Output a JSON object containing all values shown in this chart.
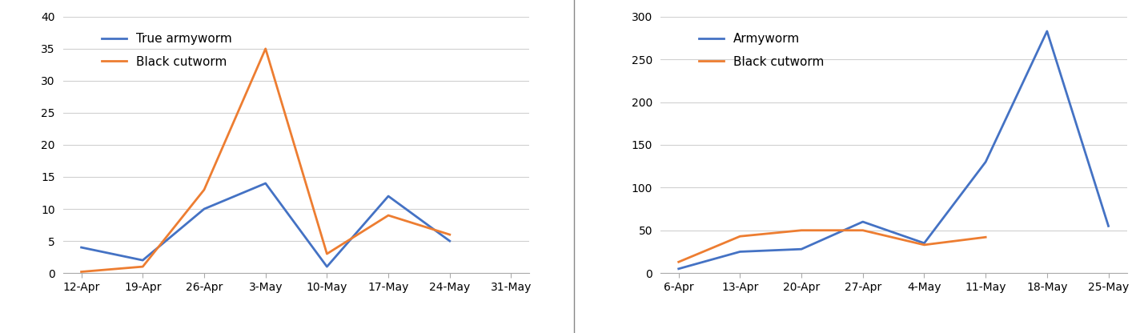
{
  "chart1": {
    "x_labels": [
      "12-Apr",
      "19-Apr",
      "26-Apr",
      "3-May",
      "10-May",
      "17-May",
      "24-May",
      "31-May"
    ],
    "true_armyworm": [
      4,
      2,
      10,
      14,
      1,
      12,
      5,
      null
    ],
    "black_cutworm": [
      0.2,
      1,
      13,
      35,
      3,
      9,
      6,
      null
    ],
    "ylim": [
      0,
      40
    ],
    "yticks": [
      0,
      5,
      10,
      15,
      20,
      25,
      30,
      35,
      40
    ],
    "color_armyworm": "#4472C4",
    "color_cutworm": "#ED7D31",
    "legend1": "True armyworm",
    "legend2": "Black cutworm"
  },
  "chart2": {
    "x_labels": [
      "6-Apr",
      "13-Apr",
      "20-Apr",
      "27-Apr",
      "4-May",
      "11-May",
      "18-May",
      "25-May"
    ],
    "armyworm": [
      5,
      25,
      28,
      60,
      35,
      130,
      283,
      55
    ],
    "black_cutworm": [
      13,
      43,
      50,
      50,
      33,
      42,
      null,
      null
    ],
    "ylim": [
      0,
      300
    ],
    "yticks": [
      0,
      50,
      100,
      150,
      200,
      250,
      300
    ],
    "color_armyworm": "#4472C4",
    "color_cutworm": "#ED7D31",
    "legend1": "Armyworm",
    "legend2": "Black cutworm"
  },
  "background_color": "#ffffff",
  "grid_color": "#d0d0d0",
  "line_width": 2.0,
  "font_size": 11
}
